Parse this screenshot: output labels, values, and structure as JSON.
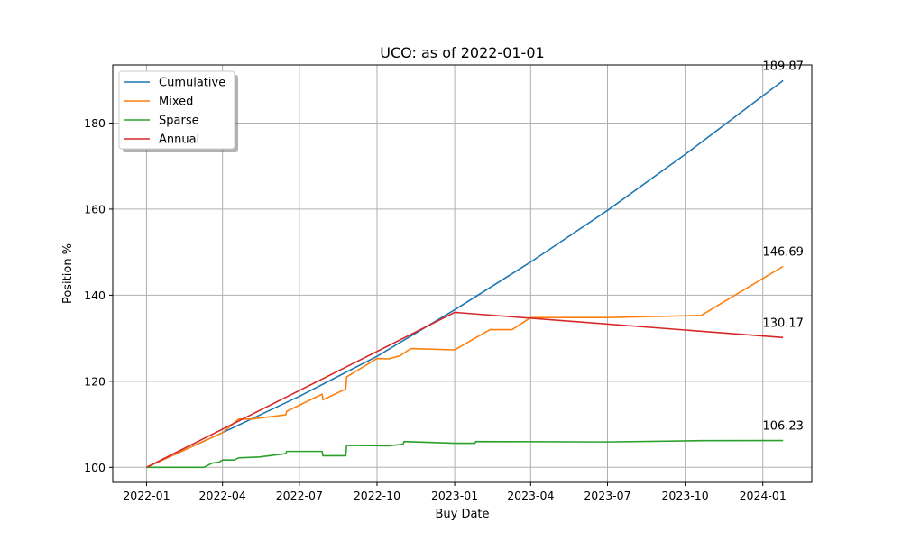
{
  "chart_data": {
    "type": "line",
    "title": "UCO: as of 2022-01-01",
    "xlabel": "Buy Date",
    "ylabel": "Position %",
    "xlim": [
      "2021-11-22",
      "2024-02-28"
    ],
    "ylim": [
      96.5,
      193.5
    ],
    "x_ticks": [
      "2022-01-01",
      "2022-04-01",
      "2022-07-01",
      "2022-10-01",
      "2023-01-01",
      "2023-04-01",
      "2023-07-01",
      "2023-10-01",
      "2024-01-01"
    ],
    "x_tick_labels": [
      "2022-01",
      "2022-04",
      "2022-07",
      "2022-10",
      "2023-01",
      "2023-04",
      "2023-07",
      "2023-10",
      "2024-01"
    ],
    "y_ticks": [
      100,
      120,
      140,
      160,
      180
    ],
    "grid": true,
    "legend_position": "top-left",
    "series": [
      {
        "name": "Cumulative",
        "color": "#1f77b4",
        "points": [
          [
            "2022-01-01",
            100.0
          ],
          [
            "2022-04-01",
            108.06
          ],
          [
            "2022-07-01",
            116.5
          ],
          [
            "2022-10-01",
            125.8
          ],
          [
            "2023-01-01",
            136.6
          ],
          [
            "2023-04-01",
            147.7
          ],
          [
            "2023-07-01",
            159.7
          ],
          [
            "2023-10-01",
            172.7
          ],
          [
            "2024-01-25",
            189.87
          ]
        ],
        "end_label": "189.87"
      },
      {
        "name": "Mixed",
        "color": "#ff7f0e",
        "points": [
          [
            "2022-01-01",
            100.0
          ],
          [
            "2022-04-01",
            108.06
          ],
          [
            "2022-04-20",
            111.2
          ],
          [
            "2022-05-05",
            111.2
          ],
          [
            "2022-06-15",
            112.2
          ],
          [
            "2022-06-16",
            113.0
          ],
          [
            "2022-07-28",
            117.0
          ],
          [
            "2022-07-29",
            115.7
          ],
          [
            "2022-08-25",
            118.2
          ],
          [
            "2022-08-26",
            121.0
          ],
          [
            "2022-10-01",
            125.3
          ],
          [
            "2022-10-15",
            125.2
          ],
          [
            "2022-10-28",
            125.9
          ],
          [
            "2022-11-10",
            127.6
          ],
          [
            "2023-01-01",
            127.3
          ],
          [
            "2023-01-25",
            130.0
          ],
          [
            "2023-02-12",
            132.0
          ],
          [
            "2023-03-10",
            132.0
          ],
          [
            "2023-04-01",
            134.8
          ],
          [
            "2023-07-01",
            134.8
          ],
          [
            "2023-10-20",
            135.3
          ],
          [
            "2024-01-25",
            146.69
          ]
        ],
        "end_label": "146.69"
      },
      {
        "name": "Sparse",
        "color": "#2ca02c",
        "points": [
          [
            "2022-01-01",
            100.0
          ],
          [
            "2022-03-10",
            100.0
          ],
          [
            "2022-03-20",
            101.0
          ],
          [
            "2022-03-28",
            101.2
          ],
          [
            "2022-04-01",
            101.7
          ],
          [
            "2022-04-15",
            101.7
          ],
          [
            "2022-04-20",
            102.2
          ],
          [
            "2022-05-15",
            102.4
          ],
          [
            "2022-06-15",
            103.2
          ],
          [
            "2022-06-16",
            103.7
          ],
          [
            "2022-07-28",
            103.7
          ],
          [
            "2022-07-29",
            102.7
          ],
          [
            "2022-08-25",
            102.7
          ],
          [
            "2022-08-26",
            105.1
          ],
          [
            "2022-10-15",
            105.0
          ],
          [
            "2022-11-01",
            105.4
          ],
          [
            "2022-11-02",
            106.0
          ],
          [
            "2023-01-01",
            105.6
          ],
          [
            "2023-01-25",
            105.6
          ],
          [
            "2023-01-26",
            106.0
          ],
          [
            "2023-07-01",
            105.9
          ],
          [
            "2023-10-20",
            106.2
          ],
          [
            "2024-01-25",
            106.23
          ]
        ],
        "end_label": "106.23"
      },
      {
        "name": "Annual",
        "color": "#d62728",
        "points": [
          [
            "2022-01-01",
            100.0
          ],
          [
            "2023-01-01",
            136.0
          ],
          [
            "2024-01-25",
            130.17
          ]
        ],
        "end_label": "130.17"
      }
    ]
  }
}
